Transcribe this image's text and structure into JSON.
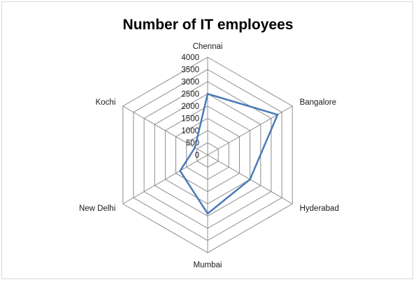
{
  "chart_data": {
    "type": "radar",
    "title": "Number of IT employees",
    "categories": [
      "Chennai",
      "Bangalore",
      "Hyderabad",
      "Mumbai",
      "New Delhi",
      "Kochi"
    ],
    "series": [
      {
        "values": [
          2500,
          3300,
          2000,
          2400,
          1300,
          600
        ]
      }
    ],
    "rlim": [
      0,
      4000
    ],
    "r_ticks": [
      0,
      500,
      1000,
      1500,
      2000,
      2500,
      3000,
      3500,
      4000
    ],
    "grid": true,
    "legend": "none",
    "colors": {
      "series": "#4a7ab8",
      "grid": "#8c8c8c"
    }
  }
}
